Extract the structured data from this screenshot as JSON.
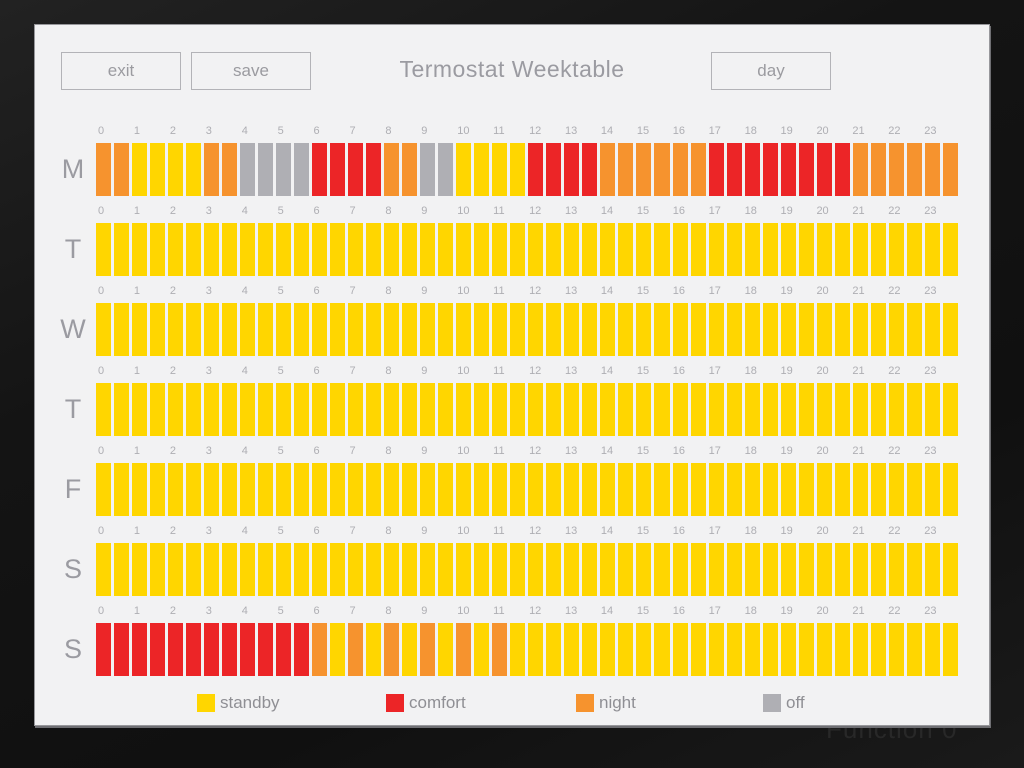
{
  "header": {
    "exit_label": "exit",
    "save_label": "save",
    "title": "Termostat Weektable",
    "day_label": "day"
  },
  "hours": [
    "0",
    "1",
    "2",
    "3",
    "4",
    "5",
    "6",
    "7",
    "8",
    "9",
    "10",
    "11",
    "12",
    "13",
    "14",
    "15",
    "16",
    "17",
    "18",
    "19",
    "20",
    "21",
    "22",
    "23"
  ],
  "states": {
    "s": {
      "name": "standby",
      "color": "#FFD600"
    },
    "c": {
      "name": "comfort",
      "color": "#EC2527"
    },
    "n": {
      "name": "night",
      "color": "#F6932E"
    },
    "o": {
      "name": "off",
      "color": "#AFAFB4"
    }
  },
  "days": [
    {
      "label": "M",
      "slots": "nnssssnnooooccccnnoossssccccnnnnnnccccccccnnnnnn"
    },
    {
      "label": "T",
      "slots": "ssssssssssssssssssssssssssssssssssssssssssssssss"
    },
    {
      "label": "W",
      "slots": "ssssssssssssssssssssssssssssssssssssssssssssssss"
    },
    {
      "label": "T",
      "slots": "ssssssssssssssssssssssssssssssssssssssssssssssss"
    },
    {
      "label": "F",
      "slots": "ssssssssssssssssssssssssssssssssssssssssssssssss"
    },
    {
      "label": "S",
      "slots": "ssssssssssssssssssssssssssssssssssssssssssssssss"
    },
    {
      "label": "S",
      "slots": "ccccccccccccnsnsnsnsnsnsssssssssssssssssssssssss"
    }
  ],
  "legend": [
    {
      "key": "s",
      "label": "standby"
    },
    {
      "key": "c",
      "label": "comfort"
    },
    {
      "key": "n",
      "label": "night"
    },
    {
      "key": "o",
      "label": "off"
    }
  ],
  "watermark": "Function 0"
}
